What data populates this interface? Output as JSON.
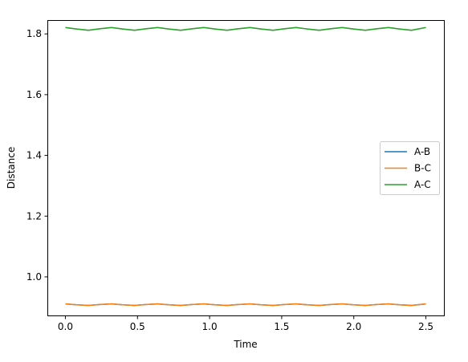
{
  "chart_data": {
    "type": "line",
    "title": "",
    "xlabel": "Time",
    "ylabel": "Distance",
    "xlim": [
      -0.125,
      2.625
    ],
    "ylim": [
      0.873,
      1.8455
    ],
    "xticks": [
      0.0,
      0.5,
      1.0,
      1.5,
      2.0,
      2.5
    ],
    "xtick_labels": [
      "0.0",
      "0.5",
      "1.0",
      "1.5",
      "2.0",
      "2.5"
    ],
    "yticks": [
      1.0,
      1.2,
      1.4,
      1.6,
      1.8
    ],
    "ytick_labels": [
      "1.0",
      "1.2",
      "1.4",
      "1.6",
      "1.8"
    ],
    "grid": false,
    "legend_position": "center-right",
    "series": [
      {
        "name": "A-B",
        "color": "#1f77b4",
        "x": [
          0.0,
          0.08,
          0.16,
          0.24,
          0.32,
          0.4,
          0.48,
          0.56,
          0.64,
          0.72,
          0.8,
          0.88,
          0.96,
          1.04,
          1.12,
          1.2,
          1.28,
          1.36,
          1.44,
          1.52,
          1.6,
          1.68,
          1.76,
          1.84,
          1.92,
          2.0,
          2.08,
          2.16,
          2.24,
          2.32,
          2.4,
          2.5
        ],
        "y": [
          0.911,
          0.908,
          0.906,
          0.909,
          0.911,
          0.908,
          0.906,
          0.909,
          0.911,
          0.908,
          0.906,
          0.909,
          0.911,
          0.908,
          0.906,
          0.909,
          0.911,
          0.908,
          0.906,
          0.909,
          0.911,
          0.908,
          0.906,
          0.909,
          0.911,
          0.908,
          0.906,
          0.909,
          0.911,
          0.908,
          0.906,
          0.911
        ]
      },
      {
        "name": "B-C",
        "color": "#ff7f0e",
        "x": [
          0.0,
          0.08,
          0.16,
          0.24,
          0.32,
          0.4,
          0.48,
          0.56,
          0.64,
          0.72,
          0.8,
          0.88,
          0.96,
          1.04,
          1.12,
          1.2,
          1.28,
          1.36,
          1.44,
          1.52,
          1.6,
          1.68,
          1.76,
          1.84,
          1.92,
          2.0,
          2.08,
          2.16,
          2.24,
          2.32,
          2.4,
          2.5
        ],
        "y": [
          0.911,
          0.908,
          0.906,
          0.909,
          0.911,
          0.908,
          0.906,
          0.909,
          0.911,
          0.908,
          0.906,
          0.909,
          0.911,
          0.908,
          0.906,
          0.909,
          0.911,
          0.908,
          0.906,
          0.909,
          0.911,
          0.908,
          0.906,
          0.909,
          0.911,
          0.908,
          0.906,
          0.909,
          0.911,
          0.908,
          0.906,
          0.911
        ]
      },
      {
        "name": "A-C",
        "color": "#2ca02c",
        "x": [
          0.0,
          0.08,
          0.16,
          0.24,
          0.32,
          0.4,
          0.48,
          0.56,
          0.64,
          0.72,
          0.8,
          0.88,
          0.96,
          1.04,
          1.12,
          1.2,
          1.28,
          1.36,
          1.44,
          1.52,
          1.6,
          1.68,
          1.76,
          1.84,
          1.92,
          2.0,
          2.08,
          2.16,
          2.24,
          2.32,
          2.4,
          2.5
        ],
        "y": [
          1.821,
          1.816,
          1.812,
          1.817,
          1.821,
          1.816,
          1.812,
          1.817,
          1.821,
          1.816,
          1.812,
          1.817,
          1.821,
          1.816,
          1.812,
          1.817,
          1.821,
          1.816,
          1.812,
          1.817,
          1.821,
          1.816,
          1.812,
          1.817,
          1.821,
          1.816,
          1.812,
          1.817,
          1.821,
          1.816,
          1.812,
          1.821
        ]
      }
    ]
  }
}
